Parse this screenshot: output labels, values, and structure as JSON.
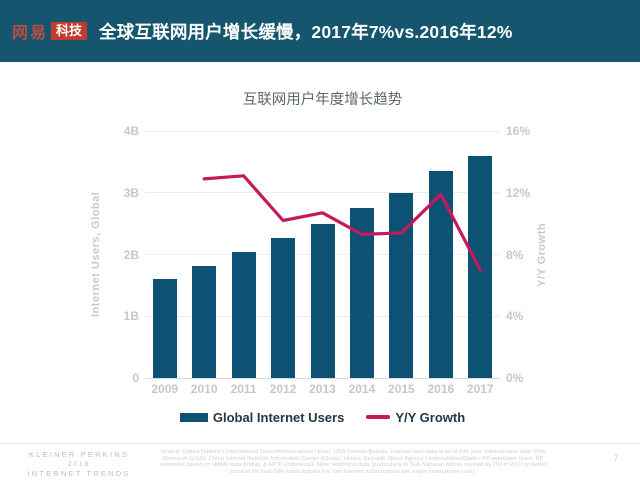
{
  "header": {
    "logo_brand": "网易",
    "logo_badge": "科技",
    "title": "全球互联网用户增长缓慢，2017年7%vs.2016年12%"
  },
  "chart": {
    "title": "互联网用户年度增长趋势",
    "left_axis": {
      "label": "Internet Users, Global",
      "ticks": [
        "4B",
        "3B",
        "2B",
        "1B",
        "0"
      ]
    },
    "right_axis": {
      "label": "Y/Y Growth",
      "ticks": [
        "16%",
        "12%",
        "8%",
        "4%",
        "0%"
      ]
    },
    "legend": {
      "bar_label": "Global Internet Users",
      "line_label": "Y/Y Growth"
    }
  },
  "chart_data": {
    "type": "bar",
    "title": "互联网用户年度增长趋势",
    "categories": [
      "2009",
      "2010",
      "2011",
      "2012",
      "2013",
      "2014",
      "2015",
      "2016",
      "2017"
    ],
    "series": [
      {
        "name": "Global Internet Users",
        "type": "bar",
        "axis": "left",
        "unit": "B",
        "values": [
          1.6,
          1.82,
          2.04,
          2.26,
          2.5,
          2.75,
          3.0,
          3.36,
          3.6
        ]
      },
      {
        "name": "Y/Y Growth",
        "type": "line",
        "axis": "right",
        "unit": "%",
        "values": [
          null,
          12.9,
          13.1,
          10.2,
          10.7,
          9.3,
          9.4,
          11.9,
          7.0
        ]
      }
    ],
    "left_ylabel": "Internet Users, Global",
    "right_ylabel": "Y/Y Growth",
    "left_ylim": [
      0,
      4
    ],
    "right_ylim": [
      0,
      16
    ],
    "grid": true,
    "legend_position": "bottom"
  },
  "colors": {
    "header_bg": "#15566E",
    "bar": "#0D5174",
    "line": "#C5195B",
    "grid": "#ECECEC",
    "baseline": "#D7DADC",
    "tick_text": "#C3C8CD",
    "title_text": "#5B6670",
    "legend_text": "#233749"
  },
  "footer": {
    "brand_line1": "KLEINER PERKINS",
    "brand_line2": "2018",
    "brand_line3": "INTERNET TRENDS",
    "source": "Source: United Nations / International Telecommunications Union, USA Census Bureau. Internet user data is as of mid-year. Internet user data: Pew Research (USA), China Internet Network Information Center (China), Islamic Republic News Agency / InternetWorldStats / KP estimates (Iran), KP estimates based on IAMAI data (India), & APJII (Indonesia). Note: Historical data (particularly in Sub-Saharan Africa) revised by ITU in 2017 to better account for dual-SIM subscriptions (i.e. two Internet subscriptions per single smartphone user).",
    "page": "7"
  }
}
